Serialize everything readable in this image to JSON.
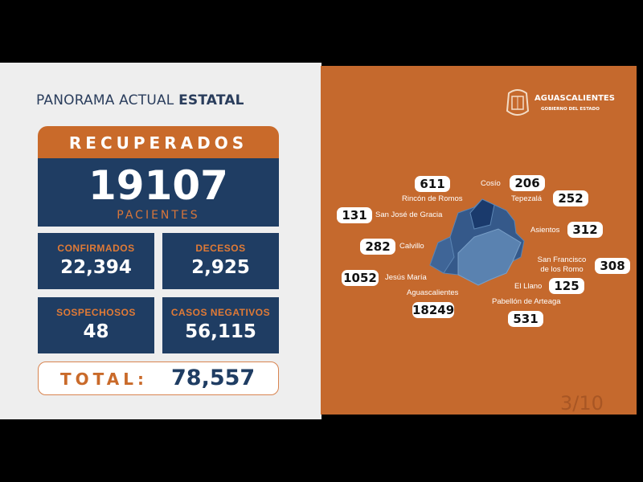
{
  "header": {
    "title_regular": "PANORAMA ACTUAL ",
    "title_bold": "ESTATAL"
  },
  "recuperados": {
    "label": "RECUPERADOS",
    "value": "19107",
    "unit": "PACIENTES"
  },
  "stats": [
    {
      "label": "CONFIRMADOS",
      "value": "22,394"
    },
    {
      "label": "DECESOS",
      "value": "2,925"
    },
    {
      "label": "SOSPECHOSOS",
      "value": "48"
    },
    {
      "label": "CASOS NEGATIVOS",
      "value": "56,115"
    }
  ],
  "total": {
    "label": "TOTAL:",
    "value": "78,557"
  },
  "logo": {
    "title": "AGUASCALIENTES",
    "subtitle": "GOBIERNO DEL ESTADO"
  },
  "municipalities": [
    {
      "name": "Rincón de Romos",
      "value": "611"
    },
    {
      "name": "Cosío",
      "value": "206"
    },
    {
      "name": "Tepezalá",
      "value": "252"
    },
    {
      "name": "San José de Gracia",
      "value": "131"
    },
    {
      "name": "Asientos",
      "value": "312"
    },
    {
      "name": "Calvillo",
      "value": "282"
    },
    {
      "name": "San Francisco de los Romo",
      "value": "308"
    },
    {
      "name": "Jesús María",
      "value": "1052"
    },
    {
      "name": "El Llano",
      "value": "125"
    },
    {
      "name": "Aguascalientes",
      "value": "18249"
    },
    {
      "name": "Pabellón de Arteaga",
      "value": "531"
    }
  ],
  "colors": {
    "orange": "#c5692d",
    "navy": "#1f3d63",
    "map_dark": "#1d3f70",
    "map_light": "#5b83b0"
  },
  "page_indicator": "3/10"
}
